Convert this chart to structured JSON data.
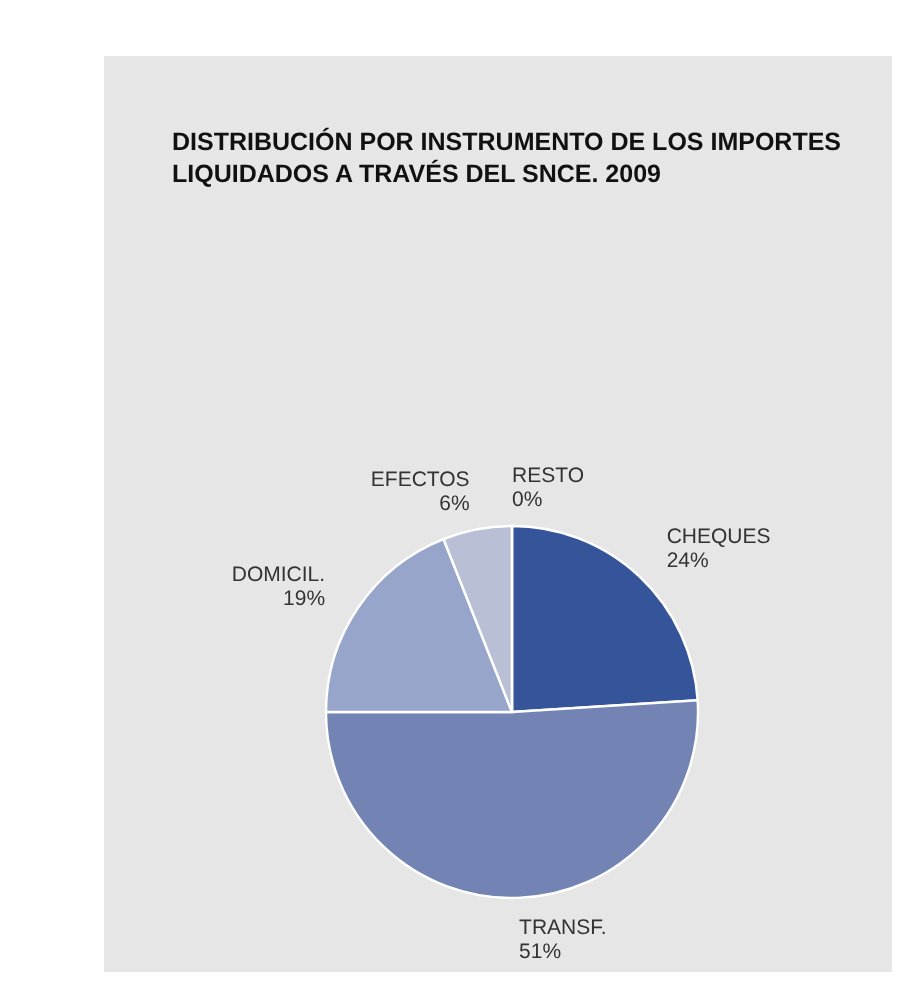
{
  "chart_data": {
    "type": "pie",
    "title": "DISTRIBUCIÓN POR INSTRUMENTO DE LOS IMPORTES LIQUIDADOS A TRAVÉS DEL SNCE. 2009",
    "categories": [
      "CHEQUES",
      "TRANSF.",
      "DOMICIL.",
      "EFECTOS",
      "RESTO"
    ],
    "values": [
      24,
      51,
      19,
      6,
      0
    ],
    "value_labels": [
      "24%",
      "51%",
      "19%",
      "6%",
      "0%"
    ],
    "colors": [
      "#35549a",
      "#7384b4",
      "#97a5cb",
      "#b9c0d6",
      "#d0d4e0"
    ]
  }
}
